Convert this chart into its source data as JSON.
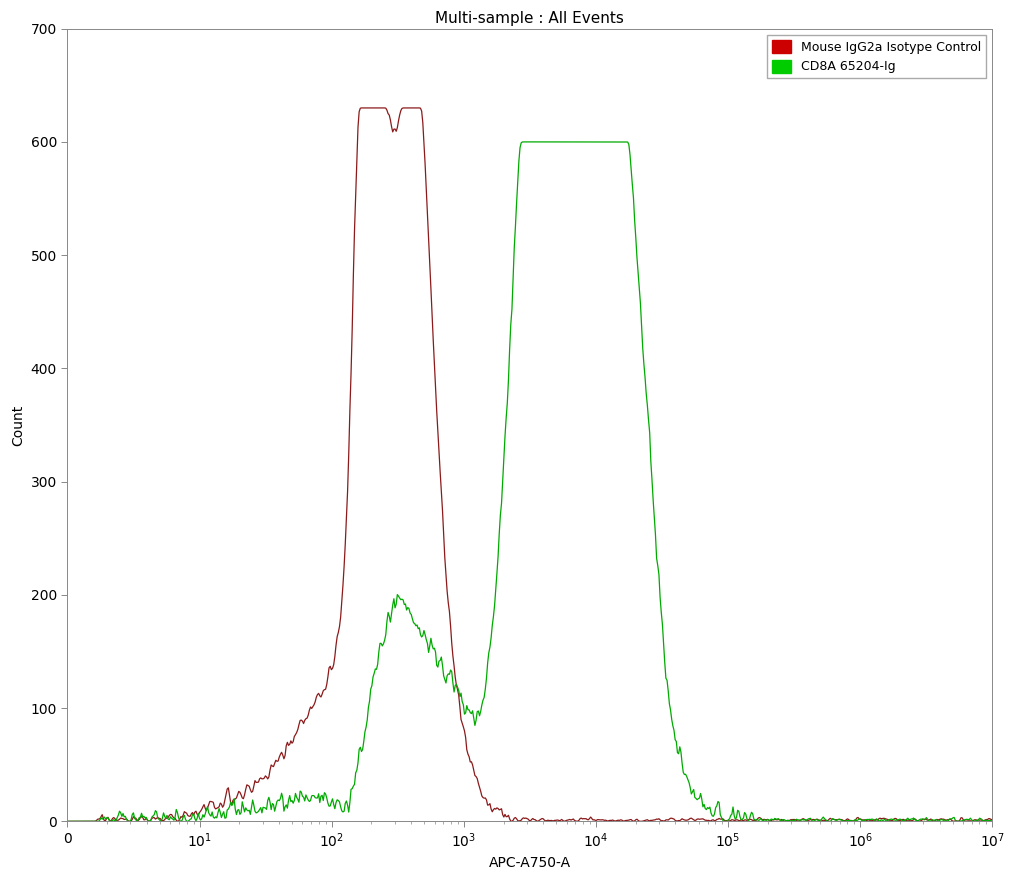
{
  "title": "Multi-sample : All Events",
  "xlabel": "APC-A750-A",
  "ylabel": "Count",
  "ylim": [
    0,
    700
  ],
  "yticks": [
    0,
    100,
    200,
    300,
    400,
    500,
    600,
    700
  ],
  "xtick_labels": [
    "0",
    "10$^1$",
    "10$^2$",
    "10$^3$",
    "10$^4$",
    "10$^5$",
    "10$^6$",
    "10$^7$"
  ],
  "xtick_positions": [
    1,
    10,
    100,
    1000,
    10000,
    100000,
    1000000,
    10000000
  ],
  "legend_entries": [
    "Mouse IgG2a Isotype Control",
    "CD8A 65204-Ig"
  ],
  "legend_colors": [
    "#cc0000",
    "#00cc00"
  ],
  "isotype_color": "#8b1a1a",
  "cd8_color": "#00aa00",
  "background_color": "#ffffff",
  "title_fontsize": 11,
  "axis_fontsize": 10,
  "legend_fontsize": 9,
  "red_peak_log": 2.48,
  "red_peak_amp": 590,
  "red_peak_sigma": 0.28,
  "green_peak_log": 3.88,
  "green_peak_amp": 555,
  "green_peak_sigma": 0.38
}
